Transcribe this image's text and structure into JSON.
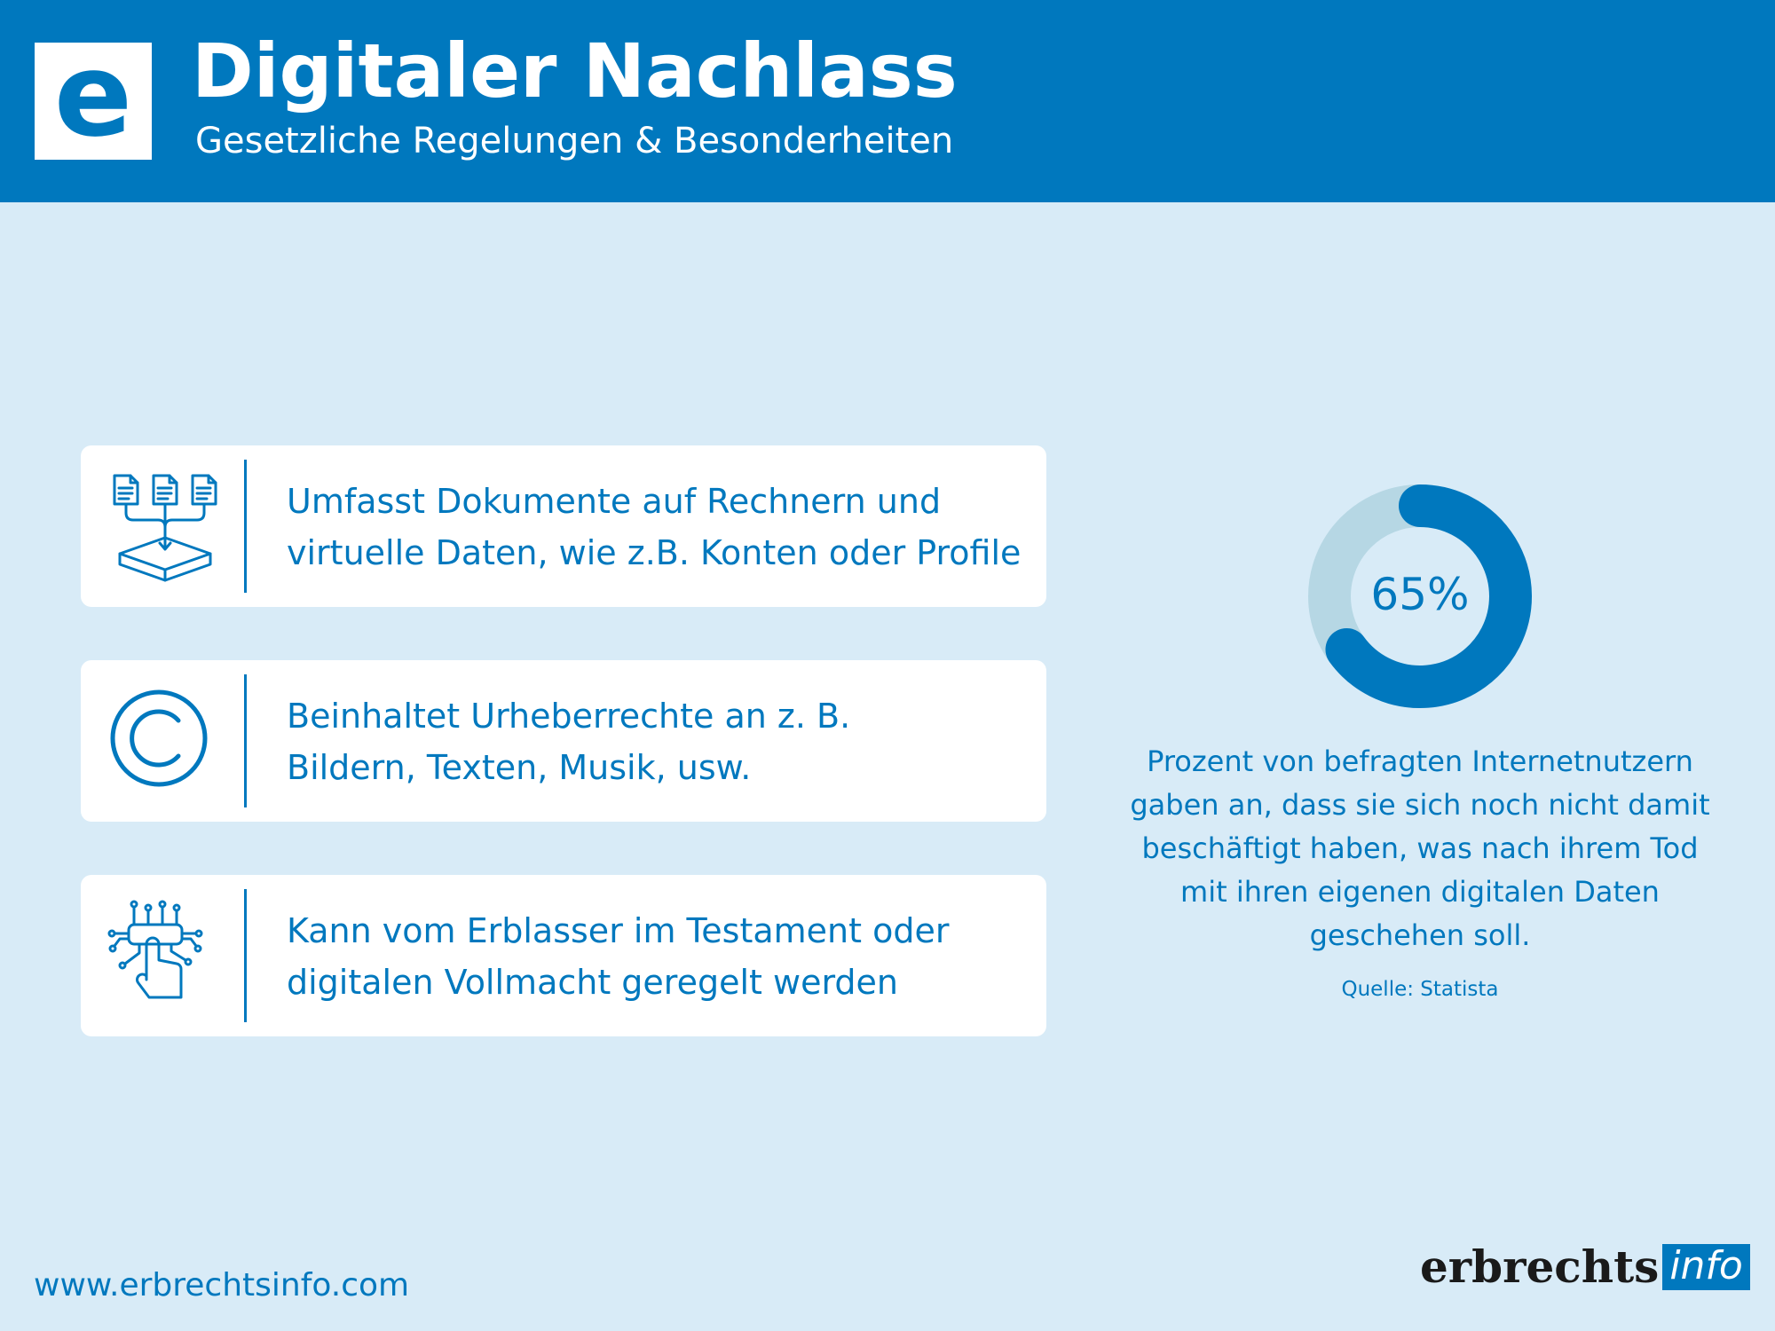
{
  "header": {
    "logo_letter": "e",
    "title": "Digitaler Nachlass",
    "subtitle": "Gesetzliche Regelungen & Besonderheiten"
  },
  "cards": [
    {
      "icon": "documents-to-box-icon",
      "lines": [
        "Umfasst Dokumente auf Rechnern und",
        "virtuelle Daten, wie z.B. Konten oder Profile"
      ]
    },
    {
      "icon": "copyright-icon",
      "lines": [
        "Beinhaltet Urheberrechte an z. B.",
        "Bildern, Texten, Musik, usw."
      ]
    },
    {
      "icon": "digital-touch-icon",
      "lines": [
        "Kann vom Erblasser im Testament oder",
        "digitalen Vollmacht geregelt werden"
      ]
    }
  ],
  "stat": {
    "percent": 65,
    "label": "65%",
    "description_lines": [
      "Prozent von befragten Internetnutzern",
      "gaben an, dass sie sich noch nicht damit",
      "beschäftigt haben, was nach ihrem Tod",
      "mit ihren eigenen digitalen Daten",
      "geschehen soll."
    ],
    "source": "Quelle: Statista"
  },
  "footer": {
    "website": "www.erbrechtsinfo.com",
    "brand_main": "erbrechts",
    "brand_info": "info"
  },
  "colors": {
    "primary": "#0078be",
    "background": "#d8ebf7",
    "donut_track": "#b6d7e4",
    "card": "#ffffff"
  }
}
